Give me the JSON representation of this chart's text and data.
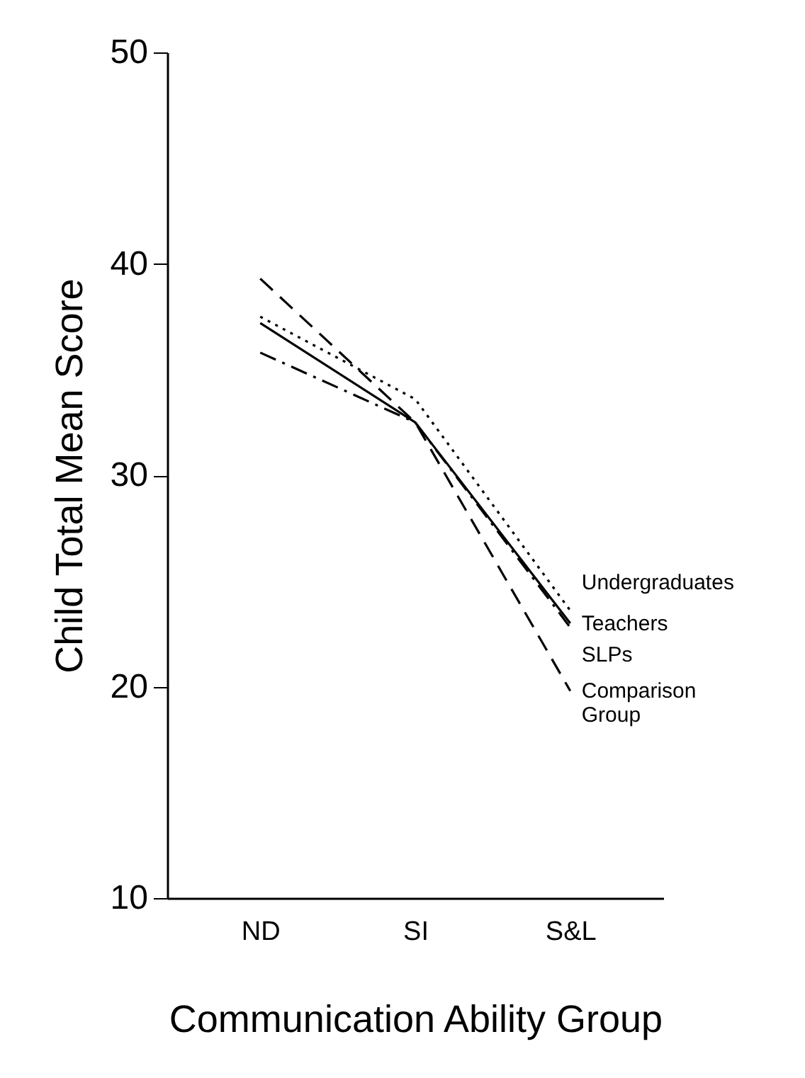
{
  "chart_data": {
    "type": "line",
    "xlabel": "Communication Ability Group",
    "ylabel": "Child Total Mean Score",
    "categories": [
      "ND",
      "SI",
      "S&L"
    ],
    "ylim": [
      10,
      50
    ],
    "yticks": [
      10,
      20,
      30,
      40,
      50
    ],
    "grid": false,
    "marker": "none",
    "series": [
      {
        "name": "Undergraduates",
        "color": "#000000",
        "line_style": "dotted",
        "values": [
          37.5,
          33.6,
          23.6
        ]
      },
      {
        "name": "Teachers",
        "color": "#000000",
        "line_style": "solid",
        "values": [
          37.2,
          32.5,
          23.0
        ]
      },
      {
        "name": "SLPs",
        "color": "#000000",
        "line_style": "dashdot",
        "values": [
          35.8,
          32.5,
          22.8
        ]
      },
      {
        "name": "Comparison Group",
        "color": "#000000",
        "line_style": "dashed",
        "values": [
          39.3,
          32.5,
          19.8
        ]
      }
    ]
  }
}
